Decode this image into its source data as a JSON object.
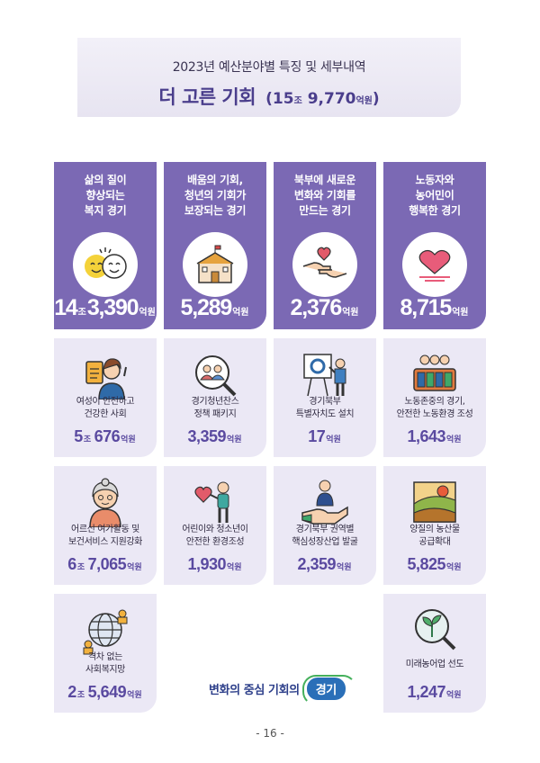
{
  "header": {
    "subtitle": "2023년 예산분야별 특징 및 세부내역",
    "title": "더 고른 기회",
    "total_open": "(15",
    "total_unit1": "조",
    "total_num": " 9,770",
    "total_unit2": "억원",
    "total_close": ")"
  },
  "columns": [
    {
      "label": "삶의 질이\n향상되는\n복지 경기",
      "icon": "smiley-faces-icon",
      "amount_a": "14",
      "amount_u1": "조",
      "amount_b": "3,390",
      "amount_u2": "억원",
      "items": [
        {
          "icon": "woman-clipboard-icon",
          "desc": "여성이 안전하고\n건강한 사회",
          "a": "5",
          "u1": "조 ",
          "b": "676",
          "u2": "억원"
        },
        {
          "icon": "elderly-woman-icon",
          "desc": "어르신 여가활동 및\n보건서비스 지원강화",
          "a": "6",
          "u1": "조 ",
          "b": "7,065",
          "u2": "억원"
        },
        {
          "icon": "globe-people-icon",
          "desc": "격차 없는\n사회복지망",
          "a": "2",
          "u1": "조 ",
          "b": "5,649",
          "u2": "억원"
        }
      ]
    },
    {
      "label": "배움의 기회,\n청년의 기회가\n보장되는 경기",
      "icon": "school-building-icon",
      "amount_a": "5,289",
      "amount_u1": "",
      "amount_b": "",
      "amount_u2": "억원",
      "items": [
        {
          "icon": "magnifier-people-icon",
          "desc": "경기청년찬스\n정책 패키지",
          "a": "3,359",
          "u1": "",
          "b": "",
          "u2": "억원"
        },
        {
          "icon": "person-heart-icon",
          "desc": "어린이와 청소년이\n안전한 환경조성",
          "a": "1,930",
          "u1": "",
          "b": "",
          "u2": "억원"
        }
      ]
    },
    {
      "label": "북부에 새로운\n변화와 기회를\n만드는 경기",
      "icon": "hands-heart-icon",
      "amount_a": "2,376",
      "amount_u1": "",
      "amount_b": "",
      "amount_u2": "억원",
      "items": [
        {
          "icon": "presentation-board-icon",
          "desc": "경기북부\n특별자치도 설치",
          "a": "17",
          "u1": "",
          "b": "",
          "u2": "억원"
        },
        {
          "icon": "hand-person-icon",
          "desc": "경기북부 권역별\n핵심성장산업 발굴",
          "a": "2,359",
          "u1": "",
          "b": "",
          "u2": "억원"
        }
      ]
    },
    {
      "label": "노동자와\n농어민이\n행복한 경기",
      "icon": "heart-icon",
      "amount_a": "8,715",
      "amount_u1": "",
      "amount_b": "",
      "amount_u2": "억원",
      "items": [
        {
          "icon": "workers-group-icon",
          "desc": "노동존중의 경기,\n안전한 노동환경 조성",
          "a": "1,643",
          "u1": "",
          "b": "",
          "u2": "억원"
        },
        {
          "icon": "farm-field-icon",
          "desc": "양질의 농산물\n공급확대",
          "a": "5,825",
          "u1": "",
          "b": "",
          "u2": "억원"
        },
        {
          "icon": "magnifier-sprout-icon",
          "desc": "미래농어업 선도",
          "a": "1,247",
          "u1": "",
          "b": "",
          "u2": "억원"
        }
      ]
    }
  ],
  "slogan": {
    "text": "변화의 중심 기회의",
    "badge": "경기"
  },
  "page_number": "- 16 -"
}
